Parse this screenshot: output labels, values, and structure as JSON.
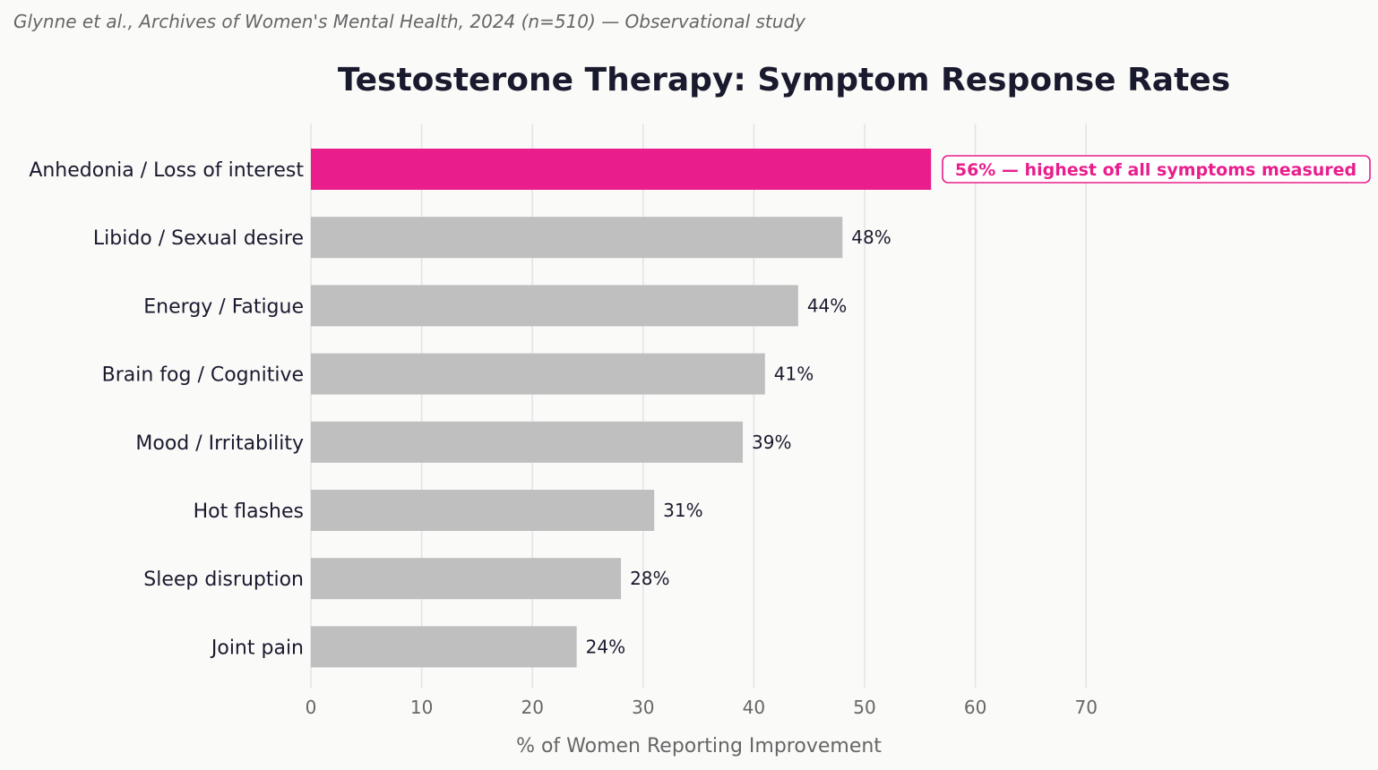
{
  "source_note": "Glynne et al., Archives of Women's Mental Health, 2024 (n=510) — Observational study",
  "chart_data": {
    "type": "bar",
    "orientation": "horizontal",
    "title": "Testosterone Therapy: Symptom Response Rates",
    "xlabel": "% of Women Reporting Improvement",
    "ylabel": "",
    "xlim": [
      0,
      80
    ],
    "xticks": [
      0,
      10,
      20,
      30,
      40,
      50,
      60,
      70
    ],
    "grid": "vertical",
    "categories": [
      "Anhedonia / Loss of interest",
      "Libido / Sexual desire",
      "Energy / Fatigue",
      "Brain fog / Cognitive",
      "Mood / Irritability",
      "Hot flashes",
      "Sleep disruption",
      "Joint pain"
    ],
    "values": [
      56,
      48,
      44,
      41,
      39,
      31,
      28,
      24
    ],
    "value_labels": [
      "",
      "48%",
      "44%",
      "41%",
      "39%",
      "31%",
      "28%",
      "24%"
    ],
    "highlight_index": 0,
    "annotation": "56% — highest of all symptoms measured",
    "colors": {
      "highlight": "#e91e8c",
      "bar": "#bfbfbf",
      "grid": "#e3e3e3"
    }
  }
}
